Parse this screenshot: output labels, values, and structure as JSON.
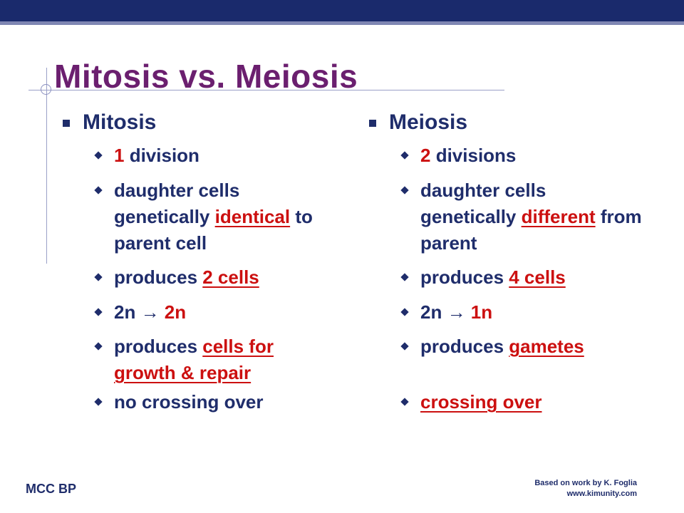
{
  "slide": {
    "title": "Mitosis vs. Meiosis",
    "columns": [
      {
        "heading": "Mitosis",
        "items": [
          {
            "pre": "",
            "hl": "1",
            "post": " division",
            "hl_underline": false,
            "hl_red": true
          },
          {
            "pre": "daughter cells genetically ",
            "hl": "identical",
            "post": " to parent cell",
            "hl_underline": true,
            "hl_red": true
          },
          {
            "pre": "produces ",
            "hl": "2 cells",
            "post": "",
            "hl_underline": true,
            "hl_red": true
          },
          {
            "pre": "2n → ",
            "hl": "2n",
            "post": "",
            "hl_underline": false,
            "hl_red": true
          },
          {
            "pre": "produces ",
            "hl": "cells for growth & repair",
            "post": "",
            "hl_underline": true,
            "hl_red": true
          },
          {
            "pre": "no crossing over",
            "hl": "",
            "post": "",
            "hl_underline": false,
            "hl_red": false
          }
        ]
      },
      {
        "heading": "Meiosis",
        "items": [
          {
            "pre": "",
            "hl": "2",
            "post": " divisions",
            "hl_underline": false,
            "hl_red": true
          },
          {
            "pre": "daughter cells genetically ",
            "hl": "different",
            "post": " from parent",
            "hl_underline": true,
            "hl_red": true
          },
          {
            "pre": "produces ",
            "hl": "4 cells",
            "post": "",
            "hl_underline": true,
            "hl_red": true
          },
          {
            "pre": "2n → ",
            "hl": "1n",
            "post": "",
            "hl_underline": false,
            "hl_red": true
          },
          {
            "pre": "produces ",
            "hl": "gametes",
            "post": "",
            "hl_underline": true,
            "hl_red": true
          },
          {
            "pre": "",
            "hl": "crossing over",
            "post": "",
            "hl_underline": true,
            "hl_red": true
          }
        ]
      }
    ],
    "footer_left": "MCC BP",
    "footer_right_line1": "Based on work by K. Foglia",
    "footer_right_line2": "www.kimunity.com"
  },
  "colors": {
    "title": "#6b1f6f",
    "text": "#1f2d6b",
    "highlight": "#cc1010",
    "top_bar": "#1a2a6c"
  }
}
